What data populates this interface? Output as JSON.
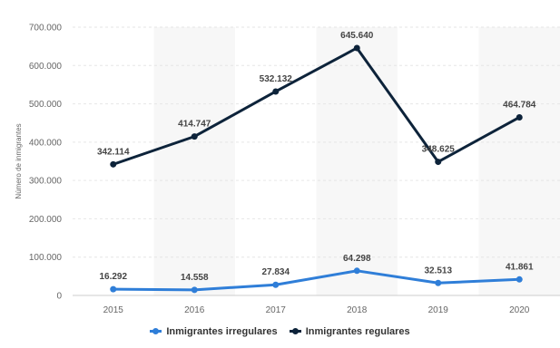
{
  "chart_data": {
    "type": "line",
    "title": "",
    "xlabel": "",
    "ylabel": "Número de inmigrantes",
    "categories": [
      "2015",
      "2016",
      "2017",
      "2018",
      "2019",
      "2020"
    ],
    "ylim": [
      0,
      700000
    ],
    "yticks": [
      0,
      100000,
      200000,
      300000,
      400000,
      500000,
      600000,
      700000
    ],
    "ytick_labels": [
      "0",
      "100.000",
      "200.000",
      "300.000",
      "400.000",
      "500.000",
      "600.000",
      "700.000"
    ],
    "grid": "horizontal dashed",
    "legend_position": "bottom-center",
    "series": [
      {
        "name": "Inmigrantes irregulares",
        "color": "#2f7ed8",
        "values": [
          16292,
          14558,
          27834,
          64298,
          32513,
          41861
        ],
        "labels": [
          "16.292",
          "14.558",
          "27.834",
          "64.298",
          "32.513",
          "41.861"
        ]
      },
      {
        "name": "Inmigrantes regulares",
        "color": "#0d233a",
        "values": [
          342114,
          414747,
          532132,
          645640,
          348625,
          464784
        ],
        "labels": [
          "342.114",
          "414.747",
          "532.132",
          "645.640",
          "348.625",
          "464.784"
        ]
      }
    ]
  }
}
